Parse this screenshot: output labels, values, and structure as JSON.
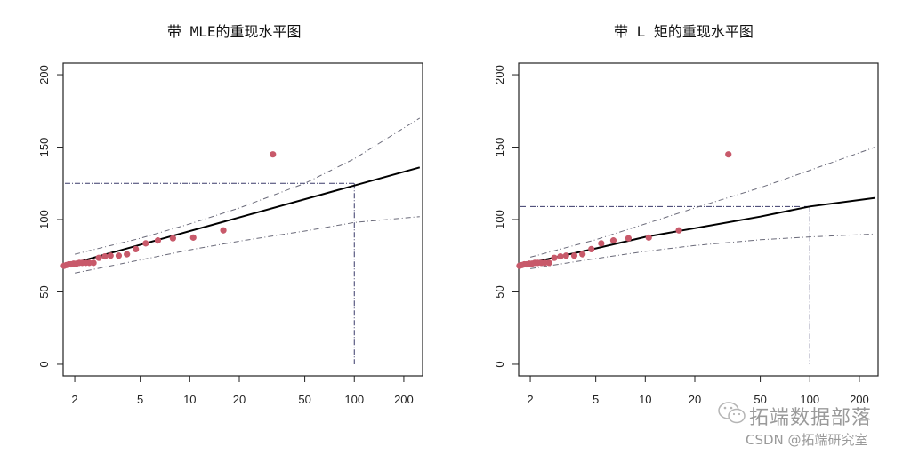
{
  "watermark": {
    "line1": "拓端数据部落",
    "line2": "CSDN @拓端研究室",
    "icon": "wechat-icon"
  },
  "colors": {
    "points": "#c8596a",
    "fit_line": "#000000",
    "ci_lines": "#6b6b7a",
    "ref_lines": "#3a3a6a",
    "axis": "#222222"
  },
  "chart_data": [
    {
      "type": "scatter",
      "title": "带 MLE的重现水平图",
      "xlabel": "",
      "ylabel": "",
      "xscale": "log",
      "xlim": [
        1.7,
        260
      ],
      "ylim": [
        -8,
        208
      ],
      "xticks": [
        2,
        5,
        10,
        20,
        50,
        100,
        200
      ],
      "xtick_labels": [
        "2",
        "5",
        "10",
        "20",
        "50",
        "100",
        "200"
      ],
      "yticks": [
        0,
        50,
        100,
        150,
        200
      ],
      "ytick_labels": [
        "0",
        "50",
        "100",
        "150",
        "200"
      ],
      "grid": false,
      "legend": null,
      "points": {
        "x": [
          1.72,
          1.78,
          1.84,
          1.9,
          1.97,
          2.05,
          2.13,
          2.22,
          2.33,
          2.45,
          2.6,
          2.8,
          3.05,
          3.3,
          3.7,
          4.15,
          4.7,
          5.4,
          6.4,
          7.9,
          10.5,
          16,
          32
        ],
        "y": [
          68,
          68.5,
          69,
          69,
          69.5,
          69.5,
          70,
          70,
          70,
          70,
          70,
          73.5,
          74.5,
          75,
          75,
          76,
          79.5,
          83.5,
          85.5,
          87,
          87.5,
          92.5,
          145
        ]
      },
      "series": [
        {
          "name": "return_level",
          "style": "solid",
          "x": [
            2,
            250
          ],
          "y": [
            70,
            136
          ]
        },
        {
          "name": "upper_ci",
          "style": "dashdot",
          "x": [
            2,
            5,
            10,
            20,
            50,
            100,
            250
          ],
          "y": [
            76,
            87,
            97,
            108,
            125,
            142,
            170
          ]
        },
        {
          "name": "lower_ci",
          "style": "dashdot",
          "x": [
            2,
            5,
            10,
            20,
            50,
            100,
            250
          ],
          "y": [
            63,
            72,
            79,
            85,
            92,
            98,
            102
          ]
        }
      ],
      "reference": {
        "return_period": 100,
        "return_level": 125
      }
    },
    {
      "type": "scatter",
      "title": "带 L 矩的重现水平图",
      "xlabel": "",
      "ylabel": "",
      "xscale": "log",
      "xlim": [
        1.7,
        260
      ],
      "ylim": [
        -8,
        208
      ],
      "xticks": [
        2,
        5,
        10,
        20,
        50,
        100,
        200
      ],
      "xtick_labels": [
        "2",
        "5",
        "10",
        "20",
        "50",
        "100",
        "200"
      ],
      "yticks": [
        0,
        50,
        100,
        150,
        200
      ],
      "ytick_labels": [
        "0",
        "50",
        "100",
        "150",
        "200"
      ],
      "grid": false,
      "legend": null,
      "points": {
        "x": [
          1.72,
          1.78,
          1.84,
          1.9,
          1.97,
          2.05,
          2.13,
          2.22,
          2.33,
          2.45,
          2.6,
          2.8,
          3.05,
          3.3,
          3.7,
          4.15,
          4.7,
          5.4,
          6.4,
          7.9,
          10.5,
          16,
          32
        ],
        "y": [
          68,
          68.5,
          69,
          69,
          69.5,
          69.5,
          70,
          70,
          70,
          70,
          70,
          73.5,
          74.5,
          75,
          75,
          76,
          79.5,
          83.5,
          85.5,
          87,
          87.5,
          92.5,
          145
        ]
      },
      "series": [
        {
          "name": "return_level",
          "style": "solid",
          "x": [
            2,
            5,
            10,
            20,
            50,
            100,
            250
          ],
          "y": [
            70,
            80,
            88,
            94,
            102,
            109,
            115
          ]
        },
        {
          "name": "upper_ci",
          "style": "dashdot",
          "x": [
            2,
            5,
            10,
            20,
            50,
            100,
            250
          ],
          "y": [
            74,
            86,
            97,
            108,
            122,
            134,
            150
          ]
        },
        {
          "name": "lower_ci",
          "style": "dashdot",
          "x": [
            2,
            5,
            10,
            20,
            50,
            100,
            250
          ],
          "y": [
            66,
            73,
            78,
            82,
            86,
            88,
            90
          ]
        }
      ],
      "reference": {
        "return_period": 100,
        "return_level": 109
      }
    }
  ]
}
